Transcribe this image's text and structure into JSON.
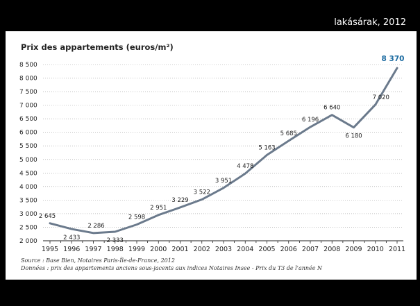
{
  "slide": {
    "title": "lakásárak, 2012"
  },
  "chart_data": {
    "type": "line",
    "title": "Prix des appartements (euros/m²)",
    "xlabel": "",
    "ylabel": "",
    "x": [
      "1995",
      "1996",
      "1997",
      "1998",
      "1999",
      "2000",
      "2001",
      "2002",
      "2003",
      "2004",
      "2005",
      "2006",
      "2007",
      "2008",
      "2009",
      "2010",
      "2011"
    ],
    "series": [
      {
        "values": [
          2645,
          2433,
          2286,
          2333,
          2598,
          2951,
          3229,
          3522,
          3951,
          4478,
          5163,
          5685,
          6196,
          6640,
          6180,
          7020,
          8370
        ],
        "color": "#6b7a8c"
      }
    ],
    "data_labels": [
      "2 645",
      "2 433",
      "2 286",
      "2 333",
      "2 598",
      "2 951",
      "3 229",
      "3 522",
      "3 951",
      "4 478",
      "5 163",
      "5 685",
      "6 196",
      "6 640",
      "6 180",
      "7 020",
      "8 370"
    ],
    "highlight_color": "#1a6aa0",
    "yticks": [
      2000,
      2500,
      3000,
      3500,
      4000,
      4500,
      5000,
      5500,
      6000,
      6500,
      7000,
      7500,
      8000,
      8500
    ],
    "ytick_labels": [
      "2 000",
      "2 500",
      "3 000",
      "3 500",
      "4 000",
      "4 500",
      "5 000",
      "5 500",
      "6 000",
      "6 500",
      "7 000",
      "7 500",
      "8 000",
      "8 500"
    ],
    "ylim": [
      2000,
      8500
    ],
    "grid": true,
    "grid_style": "dotted",
    "legend": "none"
  },
  "notes": {
    "source": "Source : Base Bien, Notaires Paris-Île-de-France, 2012",
    "data": "Données : prix des appartements anciens sous-jacents aux indices Notaires Insee - Prix du T3 de l'année N"
  }
}
